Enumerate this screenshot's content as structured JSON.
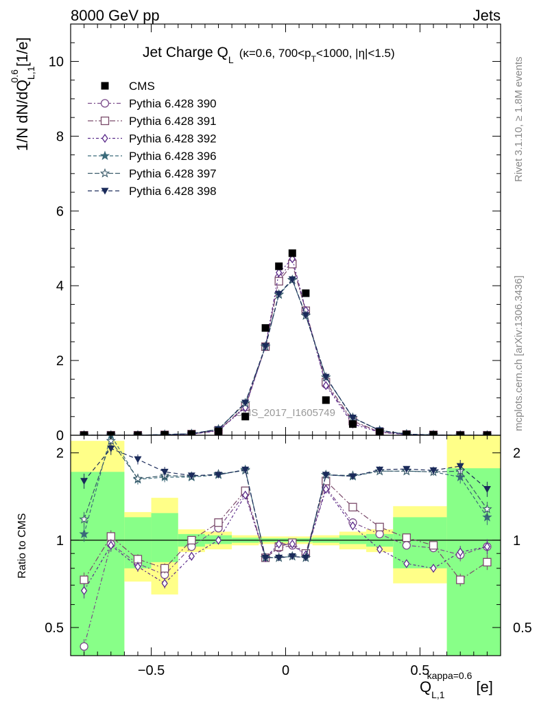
{
  "header": {
    "energy_label": "8000 GeV pp",
    "category_label": "Jets"
  },
  "side_labels": {
    "rivet": "Rivet 3.1.10, ≥ 1.8M events",
    "mcplots": "mcplots.cern.ch [arXiv:1306.3436]"
  },
  "watermark": "CMS_2017_I1605749",
  "title": {
    "main": "Jet Charge Q",
    "main_sub": "L",
    "cond_a": "(κ=0.6, 700<p",
    "cond_sub": "T",
    "cond_b": "<1000, |η|<1.5)"
  },
  "ylabel": {
    "main": "1/N dN/dQ",
    "sup": "0.6",
    "sub": "L,1",
    "unit": "[1/e]"
  },
  "ratio_ylabel": "Ratio to CMS",
  "xlabel": {
    "main": "Q",
    "sup": "kappa=0.6",
    "sub": "L,1",
    "unit": "[e]"
  },
  "colors": {
    "band_outer": "#ffff88",
    "band_inner": "#88ff88",
    "s390": "#7a4a8a",
    "s391": "#7a4a6a",
    "s392": "#5a2a8a",
    "s396": "#3a6a7a",
    "s397": "#3a5a6a",
    "s398": "#1a2a5a"
  },
  "legend": [
    {
      "label": "CMS",
      "marker": "filled-square",
      "color": "#000000"
    },
    {
      "label": "Pythia 6.428 390",
      "marker": "open-circle",
      "color": "#7a4a8a"
    },
    {
      "label": "Pythia 6.428 391",
      "marker": "open-square",
      "color": "#7a4a6a"
    },
    {
      "label": "Pythia 6.428 392",
      "marker": "open-diamond",
      "color": "#5a2a8a"
    },
    {
      "label": "Pythia 6.428 396",
      "marker": "filled-star",
      "color": "#3a6a7a"
    },
    {
      "label": "Pythia 6.428 397",
      "marker": "open-star",
      "color": "#3a5a6a"
    },
    {
      "label": "Pythia 6.428 398",
      "marker": "filled-triangle-down",
      "color": "#1a2a5a"
    }
  ],
  "chart_data": [
    {
      "type": "scatter",
      "panel": "main",
      "x": [
        -0.75,
        -0.65,
        -0.55,
        -0.45,
        -0.35,
        -0.25,
        -0.15,
        -0.075,
        -0.025,
        0.025,
        0.075,
        0.15,
        0.25,
        0.35,
        0.45,
        0.55,
        0.65,
        0.75
      ],
      "xlim": [
        -0.8,
        0.8
      ],
      "ylim": [
        0,
        11
      ],
      "yticks": [
        0,
        2,
        4,
        6,
        8,
        10
      ],
      "series": [
        {
          "name": "CMS",
          "values": [
            0.0,
            0.0,
            0.0,
            0.01,
            0.03,
            0.1,
            0.5,
            2.87,
            4.52,
            4.87,
            3.8,
            0.94,
            0.3,
            0.08,
            0.02,
            0.01,
            0.0,
            0.0
          ]
        },
        {
          "name": "Pythia 6.428 390",
          "values": [
            0.0,
            0.0,
            0.0,
            0.01,
            0.03,
            0.13,
            0.76,
            2.37,
            4.21,
            4.65,
            3.32,
            1.36,
            0.35,
            0.09,
            0.02,
            0.01,
            0.0,
            0.0
          ]
        },
        {
          "name": "Pythia 6.428 391",
          "values": [
            0.0,
            0.0,
            0.0,
            0.01,
            0.03,
            0.13,
            0.77,
            2.37,
            4.12,
            4.58,
            3.33,
            1.42,
            0.38,
            0.09,
            0.02,
            0.01,
            0.0,
            0.0
          ]
        },
        {
          "name": "Pythia 6.428 392",
          "values": [
            0.0,
            0.0,
            0.0,
            0.01,
            0.03,
            0.12,
            0.74,
            2.38,
            4.35,
            4.72,
            3.34,
            1.33,
            0.3,
            0.08,
            0.02,
            0.01,
            0.0,
            0.0
          ]
        },
        {
          "name": "Pythia 6.428 396",
          "values": [
            0.0,
            0.0,
            0.0,
            0.02,
            0.04,
            0.16,
            0.86,
            2.38,
            3.76,
            4.15,
            3.2,
            1.55,
            0.47,
            0.13,
            0.03,
            0.01,
            0.0,
            0.0
          ]
        },
        {
          "name": "Pythia 6.428 397",
          "values": [
            0.0,
            0.0,
            0.0,
            0.02,
            0.04,
            0.16,
            0.86,
            2.37,
            3.77,
            4.16,
            3.2,
            1.55,
            0.47,
            0.13,
            0.03,
            0.01,
            0.0,
            0.0
          ]
        },
        {
          "name": "Pythia 6.428 398",
          "values": [
            0.0,
            0.0,
            0.0,
            0.02,
            0.04,
            0.16,
            0.87,
            2.38,
            3.78,
            4.17,
            3.21,
            1.56,
            0.47,
            0.13,
            0.03,
            0.01,
            0.0,
            0.0
          ]
        }
      ]
    },
    {
      "type": "scatter",
      "panel": "ratio",
      "ylabel": "Ratio to CMS",
      "xlabel": "Q_L,1^kappa=0.6 [e]",
      "xlim": [
        -0.8,
        0.8
      ],
      "ylim": [
        0.4,
        2.3
      ],
      "log_y": true,
      "xticks": [
        -0.5,
        0,
        0.5
      ],
      "yticks": [
        0.5,
        1,
        2
      ],
      "reference": 1,
      "bands": [
        {
          "x0": -0.8,
          "x1": -0.6,
          "outer": [
            0.4,
            2.2
          ],
          "inner": [
            0.4,
            1.72
          ]
        },
        {
          "x0": -0.6,
          "x1": -0.5,
          "outer": [
            0.72,
            1.25
          ],
          "inner": [
            0.8,
            1.2
          ]
        },
        {
          "x0": -0.5,
          "x1": -0.4,
          "outer": [
            0.65,
            1.4
          ],
          "inner": [
            0.84,
            1.24
          ]
        },
        {
          "x0": -0.4,
          "x1": -0.3,
          "outer": [
            0.91,
            1.09
          ],
          "inner": [
            0.95,
            1.05
          ]
        },
        {
          "x0": -0.3,
          "x1": -0.2,
          "outer": [
            0.93,
            1.07
          ],
          "inner": [
            0.97,
            1.04
          ]
        },
        {
          "x0": -0.2,
          "x1": -0.1,
          "outer": [
            0.96,
            1.04
          ],
          "inner": [
            0.98,
            1.02
          ]
        },
        {
          "x0": -0.1,
          "x1": 0.1,
          "outer": [
            0.97,
            1.03
          ],
          "inner": [
            0.985,
            1.015
          ]
        },
        {
          "x0": 0.1,
          "x1": 0.2,
          "outer": [
            0.96,
            1.04
          ],
          "inner": [
            0.98,
            1.02
          ]
        },
        {
          "x0": 0.2,
          "x1": 0.3,
          "outer": [
            0.93,
            1.07
          ],
          "inner": [
            0.97,
            1.04
          ]
        },
        {
          "x0": 0.3,
          "x1": 0.4,
          "outer": [
            0.91,
            1.09
          ],
          "inner": [
            0.95,
            1.05
          ]
        },
        {
          "x0": 0.4,
          "x1": 0.6,
          "outer": [
            0.71,
            1.31
          ],
          "inner": [
            0.8,
            1.2
          ]
        },
        {
          "x0": 0.6,
          "x1": 0.8,
          "outer": [
            0.4,
            2.3
          ],
          "inner": [
            0.4,
            1.77
          ]
        }
      ],
      "series": [
        {
          "name": "Pythia 6.428 390",
          "values": [
            0.43,
            0.97,
            0.83,
            0.76,
            0.95,
            1.1,
            1.45,
            0.87,
            0.94,
            0.96,
            0.89,
            1.52,
            1.15,
            1.05,
            0.96,
            0.94,
            0.89,
            0.95
          ],
          "err": [
            0.06,
            0.05,
            0.04,
            0.04,
            0.02,
            0.02,
            0.02,
            0.01,
            0.01,
            0.01,
            0.01,
            0.02,
            0.02,
            0.02,
            0.02,
            0.03,
            0.05,
            0.06
          ]
        },
        {
          "name": "Pythia 6.428 391",
          "values": [
            0.73,
            1.03,
            0.86,
            0.8,
            1.0,
            1.15,
            1.48,
            0.87,
            0.95,
            0.98,
            0.9,
            1.6,
            1.3,
            1.11,
            1.02,
            0.96,
            0.73,
            0.84
          ],
          "err": [
            0.06,
            0.05,
            0.04,
            0.04,
            0.02,
            0.02,
            0.02,
            0.01,
            0.01,
            0.01,
            0.01,
            0.02,
            0.02,
            0.02,
            0.02,
            0.03,
            0.05,
            0.06
          ]
        },
        {
          "name": "Pythia 6.428 392",
          "values": [
            0.67,
            0.96,
            0.81,
            0.71,
            0.88,
            1.0,
            1.43,
            0.87,
            0.97,
            0.97,
            0.89,
            1.5,
            1.12,
            0.93,
            0.83,
            0.8,
            0.91,
            0.95
          ],
          "err": [
            0.06,
            0.05,
            0.04,
            0.04,
            0.02,
            0.02,
            0.02,
            0.01,
            0.01,
            0.01,
            0.01,
            0.02,
            0.02,
            0.02,
            0.02,
            0.03,
            0.05,
            0.06
          ]
        },
        {
          "name": "Pythia 6.428 396",
          "values": [
            1.05,
            2.3,
            1.62,
            1.65,
            1.65,
            1.68,
            1.75,
            0.87,
            0.87,
            0.88,
            0.87,
            1.68,
            1.66,
            1.73,
            1.73,
            1.72,
            1.65,
            1.2
          ],
          "err": [
            0.06,
            0.05,
            0.04,
            0.04,
            0.02,
            0.02,
            0.02,
            0.01,
            0.01,
            0.01,
            0.01,
            0.02,
            0.02,
            0.02,
            0.02,
            0.03,
            0.05,
            0.06
          ]
        },
        {
          "name": "Pythia 6.428 397",
          "values": [
            1.18,
            2.2,
            1.63,
            1.67,
            1.66,
            1.69,
            1.74,
            0.87,
            0.87,
            0.88,
            0.87,
            1.68,
            1.67,
            1.73,
            1.73,
            1.72,
            1.73,
            1.28
          ],
          "err": [
            0.06,
            0.05,
            0.04,
            0.04,
            0.02,
            0.02,
            0.02,
            0.01,
            0.01,
            0.01,
            0.01,
            0.02,
            0.02,
            0.02,
            0.02,
            0.03,
            0.05,
            0.06
          ]
        },
        {
          "name": "Pythia 6.428 398",
          "values": [
            1.6,
            2.07,
            1.9,
            1.72,
            1.67,
            1.68,
            1.75,
            0.87,
            0.87,
            0.88,
            0.87,
            1.68,
            1.66,
            1.75,
            1.76,
            1.74,
            1.8,
            1.5
          ],
          "err": [
            0.06,
            0.05,
            0.04,
            0.04,
            0.02,
            0.02,
            0.02,
            0.01,
            0.01,
            0.01,
            0.01,
            0.02,
            0.02,
            0.02,
            0.02,
            0.03,
            0.05,
            0.06
          ]
        }
      ]
    }
  ]
}
